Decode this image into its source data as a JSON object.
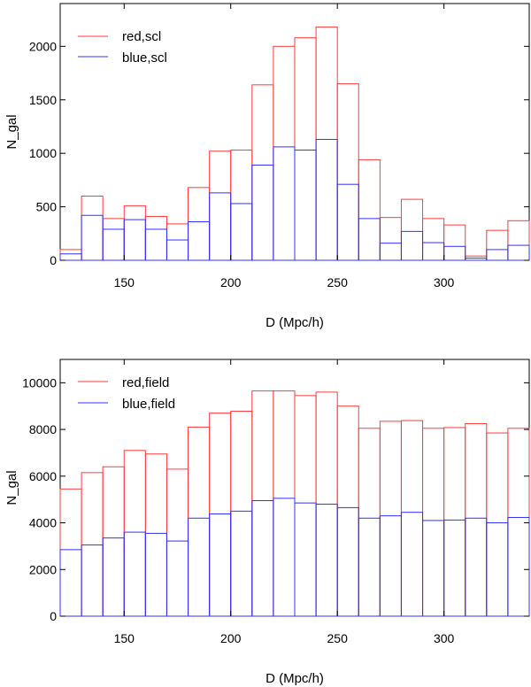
{
  "colors": {
    "red": "#ff3b3b",
    "blue": "#3030ff",
    "axis": "#000000"
  },
  "chart_data": [
    {
      "type": "bar",
      "title": "",
      "xlabel": "D (Mpc/h)",
      "ylabel": "N_gal",
      "xlim": [
        120,
        340
      ],
      "ylim": [
        0,
        2400
      ],
      "xticks": [
        150,
        200,
        250,
        300
      ],
      "yticks": [
        0,
        500,
        1000,
        1500,
        2000
      ],
      "bin_edges": [
        120,
        130,
        140,
        150,
        160,
        170,
        180,
        190,
        200,
        210,
        220,
        230,
        240,
        250,
        260,
        270,
        280,
        290,
        300,
        310,
        320,
        330,
        340
      ],
      "legend_position": "top-left",
      "series": [
        {
          "name": "red,scl",
          "color": "#ff3b3b",
          "values": [
            100,
            600,
            390,
            510,
            410,
            340,
            680,
            1020,
            1030,
            1640,
            2000,
            2080,
            2180,
            1650,
            940,
            400,
            570,
            390,
            330,
            40,
            280,
            370
          ]
        },
        {
          "name": "blue,scl",
          "color": "#3030ff",
          "values": [
            60,
            420,
            290,
            380,
            290,
            190,
            360,
            630,
            530,
            890,
            1060,
            1030,
            1130,
            710,
            390,
            160,
            270,
            165,
            130,
            20,
            100,
            140
          ]
        }
      ]
    },
    {
      "type": "bar",
      "title": "",
      "xlabel": "D (Mpc/h)",
      "ylabel": "N_gal",
      "xlim": [
        120,
        340
      ],
      "ylim": [
        0,
        11000
      ],
      "xticks": [
        150,
        200,
        250,
        300
      ],
      "yticks": [
        0,
        2000,
        4000,
        6000,
        8000,
        10000
      ],
      "bin_edges": [
        120,
        130,
        140,
        150,
        160,
        170,
        180,
        190,
        200,
        210,
        220,
        230,
        240,
        250,
        260,
        270,
        280,
        290,
        300,
        310,
        320,
        330,
        340
      ],
      "legend_position": "top-left",
      "series": [
        {
          "name": "red,field",
          "color": "#ff3b3b",
          "values": [
            5450,
            6150,
            6400,
            7100,
            6950,
            6300,
            8100,
            8700,
            8780,
            9650,
            9650,
            9450,
            9600,
            9000,
            8050,
            8350,
            8380,
            8050,
            8080,
            8250,
            7850,
            8050
          ]
        },
        {
          "name": "blue,field",
          "color": "#3030ff",
          "values": [
            2850,
            3050,
            3350,
            3600,
            3550,
            3220,
            4200,
            4380,
            4500,
            4950,
            5050,
            4850,
            4800,
            4650,
            4200,
            4300,
            4450,
            4100,
            4120,
            4200,
            4000,
            4230
          ]
        }
      ]
    }
  ]
}
